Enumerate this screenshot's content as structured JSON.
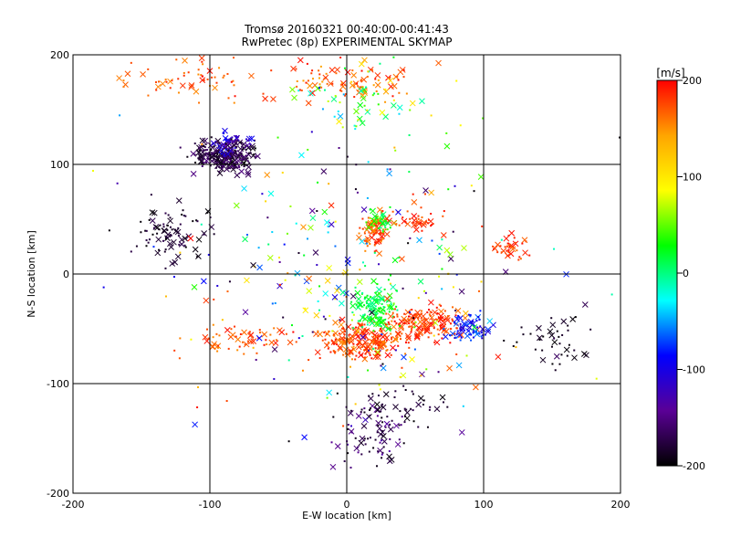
{
  "title_line1": "Tromsø 20160321 00:40:00-00:41:43",
  "title_line2": "RwPretec (8p) EXPERIMENTAL SKYMAP",
  "colorbar": {
    "unit_label": "[m/s]",
    "ticks": [
      "200",
      "100",
      "0",
      "-100",
      "-200"
    ],
    "stops": [
      "#ff0000",
      "#ffa500",
      "#ffff00",
      "#00ff00",
      "#00ffff",
      "#0000ff",
      "#5a0096",
      "#000000"
    ]
  },
  "chart_data": {
    "type": "scatter",
    "title": "Tromsø 20160321 00:40:00-00:41:43",
    "subtitle": "RwPretec (8p) EXPERIMENTAL SKYMAP",
    "xlabel": "E-W location [km]",
    "ylabel": "N-S location [km]",
    "xlim": [
      -200,
      200
    ],
    "ylim": [
      -200,
      200
    ],
    "x_ticks": [
      -200,
      -100,
      0,
      100,
      200
    ],
    "y_ticks": [
      -200,
      -100,
      0,
      100,
      200
    ],
    "x_tick_labels": [
      "-200",
      "-100",
      "0",
      "100",
      "200"
    ],
    "y_tick_labels": [
      "-200",
      "-100",
      "0",
      "100",
      "200"
    ],
    "grid": true,
    "color_scale": {
      "label": "[m/s]",
      "min": -200,
      "max": 200
    },
    "markers": {
      "x": "cross",
      "dot": "small point"
    },
    "clusters": [
      {
        "cx": -90,
        "cy": 108,
        "sx": 18,
        "sy": 12,
        "n": 260,
        "vmin": -200,
        "vmax": -150
      },
      {
        "cx": -85,
        "cy": 120,
        "sx": 12,
        "sy": 8,
        "n": 40,
        "vmin": -140,
        "vmax": -80
      },
      {
        "cx": -130,
        "cy": 35,
        "sx": 22,
        "sy": 22,
        "n": 90,
        "vmin": -200,
        "vmax": -170
      },
      {
        "cx": -110,
        "cy": 180,
        "sx": 50,
        "sy": 18,
        "n": 70,
        "vmin": 150,
        "vmax": 200
      },
      {
        "cx": 0,
        "cy": 175,
        "sx": 40,
        "sy": 15,
        "n": 90,
        "vmin": 140,
        "vmax": 200
      },
      {
        "cx": 20,
        "cy": 160,
        "sx": 55,
        "sy": 25,
        "n": 60,
        "vmin": -50,
        "vmax": 120
      },
      {
        "cx": 20,
        "cy": 40,
        "sx": 8,
        "sy": 14,
        "n": 80,
        "vmin": 150,
        "vmax": 200
      },
      {
        "cx": 25,
        "cy": 50,
        "sx": 10,
        "sy": 10,
        "n": 40,
        "vmin": 0,
        "vmax": 60
      },
      {
        "cx": 50,
        "cy": 50,
        "sx": 15,
        "sy": 10,
        "n": 40,
        "vmin": 160,
        "vmax": 200
      },
      {
        "cx": 120,
        "cy": 25,
        "sx": 10,
        "sy": 10,
        "n": 40,
        "vmin": 160,
        "vmax": 200
      },
      {
        "cx": 10,
        "cy": -60,
        "sx": 25,
        "sy": 14,
        "n": 220,
        "vmin": 150,
        "vmax": 200
      },
      {
        "cx": 20,
        "cy": -30,
        "sx": 12,
        "sy": 15,
        "n": 120,
        "vmin": -10,
        "vmax": 40
      },
      {
        "cx": 60,
        "cy": -45,
        "sx": 25,
        "sy": 12,
        "n": 150,
        "vmin": 160,
        "vmax": 200
      },
      {
        "cx": 90,
        "cy": -50,
        "sx": 12,
        "sy": 10,
        "n": 70,
        "vmin": -120,
        "vmax": -60
      },
      {
        "cx": -80,
        "cy": -60,
        "sx": 35,
        "sy": 12,
        "n": 60,
        "vmin": 150,
        "vmax": 200
      },
      {
        "cx": 20,
        "cy": -150,
        "sx": 20,
        "sy": 25,
        "n": 70,
        "vmin": -200,
        "vmax": -130
      },
      {
        "cx": 30,
        "cy": -120,
        "sx": 30,
        "sy": 15,
        "n": 50,
        "vmin": -200,
        "vmax": -170
      },
      {
        "cx": 150,
        "cy": -60,
        "sx": 25,
        "sy": 20,
        "n": 40,
        "vmin": -200,
        "vmax": -180
      },
      {
        "cx": 0,
        "cy": 0,
        "sx": 110,
        "sy": 110,
        "n": 280,
        "vmin": -200,
        "vmax": 200
      }
    ]
  }
}
